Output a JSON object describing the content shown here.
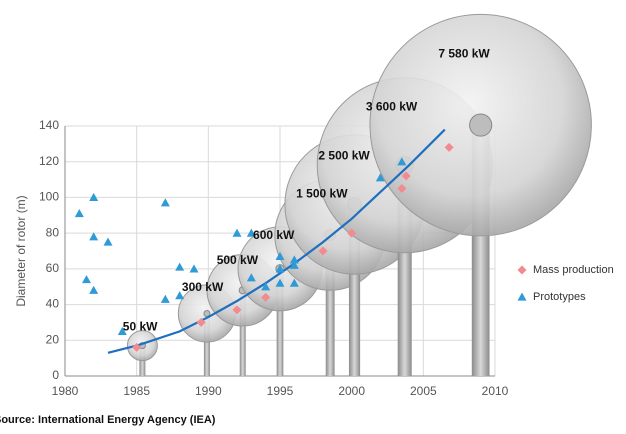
{
  "chart_data": {
    "type": "scatter",
    "y_label": "Diameter of rotor (m)",
    "source": "Source: International Energy Agency (IEA)",
    "xlim": [
      1980,
      2010
    ],
    "ylim": [
      0,
      140
    ],
    "xticks": [
      1980,
      1985,
      1990,
      1995,
      2000,
      2005,
      2010
    ],
    "yticks": [
      0,
      20,
      40,
      60,
      80,
      100,
      120,
      140
    ],
    "grid": true,
    "series": [
      {
        "name": "Mass production",
        "color": "#f28a90",
        "marker": "diamond",
        "x": [
          1985,
          1989.5,
          1992,
          1994,
          1998,
          2000,
          2003.5,
          2003.8,
          2006.8
        ],
        "values": [
          16,
          30,
          37,
          44,
          70,
          80,
          105,
          112,
          128
        ]
      },
      {
        "name": "Prototypes",
        "color": "#2e9bd6",
        "marker": "triangle",
        "x": [
          1981,
          1981.5,
          1982,
          1982,
          1982,
          1983,
          1984,
          1987,
          1987,
          1988,
          1988,
          1989,
          1992,
          1993,
          1993,
          1994,
          1995,
          1995,
          1995,
          1996,
          1996,
          1996,
          2002,
          2003.5
        ],
        "values": [
          91,
          54,
          100,
          78,
          48,
          75,
          25,
          97,
          43,
          61,
          45,
          60,
          80,
          80,
          55,
          50,
          67,
          60,
          52,
          65,
          62,
          52,
          111,
          120
        ]
      }
    ],
    "trend": {
      "color": "#1f6fc0",
      "x": [
        1983,
        1985,
        1988,
        1990,
        1992,
        1994,
        1996,
        1998,
        2000,
        2002,
        2004,
        2006.5
      ],
      "values": [
        13,
        17,
        25,
        33,
        42,
        52,
        63,
        75,
        88,
        103,
        118,
        138
      ]
    },
    "turbines": [
      {
        "label": "50 kW",
        "x": 1985.4,
        "hub": 17,
        "size": 8.4
      },
      {
        "label": "300 kW",
        "x": 1989.9,
        "hub": 35,
        "size": 16
      },
      {
        "label": "500 kW",
        "x": 1992.4,
        "hub": 48,
        "size": 20
      },
      {
        "label": "600 kW",
        "x": 1995,
        "hub": 60,
        "size": 23.5
      },
      {
        "label": "1 500 kW",
        "x": 1998.5,
        "hub": 79,
        "size": 31
      },
      {
        "label": "2 500 kW",
        "x": 2000.2,
        "hub": 96,
        "size": 39
      },
      {
        "label": "3 600 kW",
        "x": 2003.7,
        "hub": 118,
        "size": 49
      },
      {
        "label": "7 580 kW",
        "x": 2009,
        "hub": 140.5,
        "size": 62
      }
    ],
    "legend": "right"
  }
}
